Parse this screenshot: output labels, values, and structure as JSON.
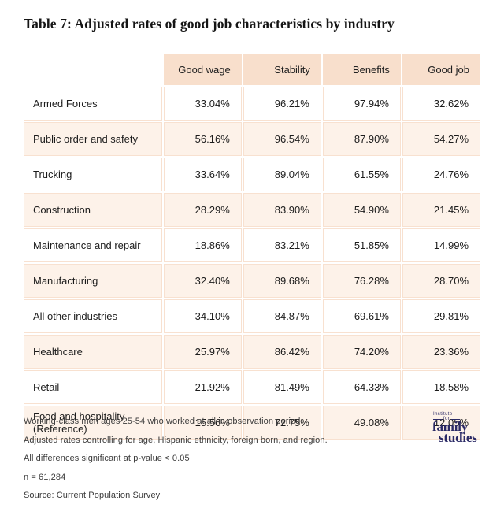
{
  "page": {
    "title": "Table 7: Adjusted rates of good job characteristics by industry"
  },
  "table": {
    "columns": [
      "Good wage",
      "Stability",
      "Benefits",
      "Good job"
    ],
    "rows": [
      {
        "label": "Armed Forces",
        "values": [
          "33.04%",
          "96.21%",
          "97.94%",
          "32.62%"
        ]
      },
      {
        "label": "Public order and safety",
        "values": [
          "56.16%",
          "96.54%",
          "87.90%",
          "54.27%"
        ]
      },
      {
        "label": "Trucking",
        "values": [
          "33.64%",
          "89.04%",
          "61.55%",
          "24.76%"
        ]
      },
      {
        "label": "Construction",
        "values": [
          "28.29%",
          "83.90%",
          "54.90%",
          "21.45%"
        ]
      },
      {
        "label": "Maintenance and repair",
        "values": [
          "18.86%",
          "83.21%",
          "51.85%",
          "14.99%"
        ]
      },
      {
        "label": "Manufacturing",
        "values": [
          "32.40%",
          "89.68%",
          "76.28%",
          "28.70%"
        ]
      },
      {
        "label": "All other industries",
        "values": [
          "34.10%",
          "84.87%",
          "69.61%",
          "29.81%"
        ]
      },
      {
        "label": "Healthcare",
        "values": [
          "25.97%",
          "86.42%",
          "74.20%",
          "23.36%"
        ]
      },
      {
        "label": "Retail",
        "values": [
          "21.92%",
          "81.49%",
          "64.33%",
          "18.58%"
        ]
      },
      {
        "label": "Food and hospitality (Reference)",
        "values": [
          "15.56%",
          "72.75%",
          "49.08%",
          "12.05%"
        ]
      }
    ]
  },
  "footnotes": {
    "lines": [
      "Working-class men ages 25-54 who worked at all in observation period.",
      "Adjusted rates controlling for age, Hispanic ethnicity, foreign born, and region.",
      "All differences significant at p-value < 0.05",
      "n = 61,284",
      "Source: Current Population Survey"
    ]
  },
  "logo": {
    "institute": "Institute",
    "for": "for",
    "name_line1": "family",
    "name_line2": "studies"
  },
  "colors": {
    "header_bg": "#f8dfcc",
    "row_alt_bg": "#fdf2e9",
    "cell_border": "#f8e1d0",
    "logo_navy": "#2b2a66"
  },
  "chart_data": {
    "type": "table",
    "title": "Table 7: Adjusted rates of good job characteristics by industry",
    "unit": "%",
    "categories": [
      "Armed Forces",
      "Public order and safety",
      "Trucking",
      "Construction",
      "Maintenance and repair",
      "Manufacturing",
      "All other industries",
      "Healthcare",
      "Retail",
      "Food and hospitality (Reference)"
    ],
    "series": [
      {
        "name": "Good wage",
        "values": [
          33.04,
          56.16,
          33.64,
          28.29,
          18.86,
          32.4,
          34.1,
          25.97,
          21.92,
          15.56
        ]
      },
      {
        "name": "Stability",
        "values": [
          96.21,
          96.54,
          89.04,
          83.9,
          83.21,
          89.68,
          84.87,
          86.42,
          81.49,
          72.75
        ]
      },
      {
        "name": "Benefits",
        "values": [
          97.94,
          87.9,
          61.55,
          54.9,
          51.85,
          76.28,
          69.61,
          74.2,
          64.33,
          49.08
        ]
      },
      {
        "name": "Good job",
        "values": [
          32.62,
          54.27,
          24.76,
          21.45,
          14.99,
          28.7,
          29.81,
          23.36,
          18.58,
          12.05
        ]
      }
    ]
  }
}
